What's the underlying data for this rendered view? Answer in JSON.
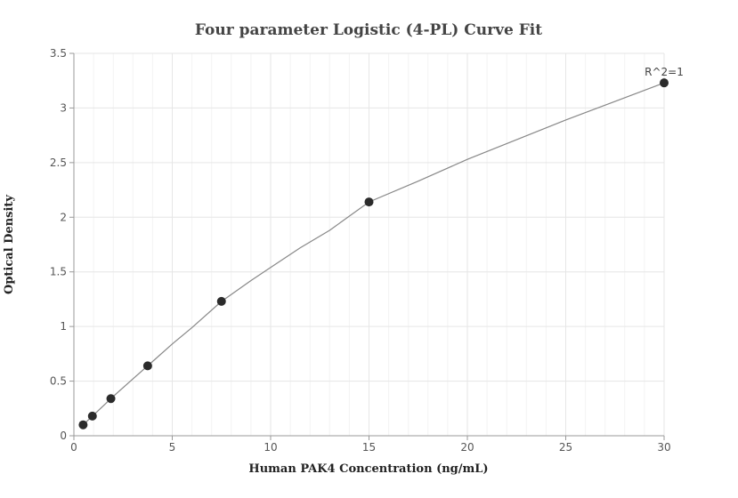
{
  "chart_data": {
    "type": "scatter",
    "title": "Four parameter Logistic (4-PL) Curve Fit",
    "xlabel": "Human PAK4 Concentration (ng/mL)",
    "ylabel": "Optical Density",
    "xlim": [
      0,
      30
    ],
    "ylim": [
      0,
      3.5
    ],
    "x_ticks": [
      0,
      5,
      10,
      15,
      20,
      25,
      30
    ],
    "y_ticks": [
      0,
      0.5,
      1,
      1.5,
      2,
      2.5,
      3,
      3.5
    ],
    "x_tick_labels": [
      "0",
      "5",
      "10",
      "15",
      "20",
      "25",
      "30"
    ],
    "y_tick_labels": [
      "0",
      "0.5",
      "1",
      "1.5",
      "2",
      "2.5",
      "3",
      "3.5"
    ],
    "grid": true,
    "points": [
      {
        "x": 0.47,
        "y": 0.1
      },
      {
        "x": 0.94,
        "y": 0.18
      },
      {
        "x": 1.88,
        "y": 0.34
      },
      {
        "x": 3.75,
        "y": 0.64
      },
      {
        "x": 7.5,
        "y": 1.23
      },
      {
        "x": 15,
        "y": 2.14
      },
      {
        "x": 30,
        "y": 3.23
      }
    ],
    "fit_curve": [
      {
        "x": 0.47,
        "y": 0.1
      },
      {
        "x": 1.0,
        "y": 0.19
      },
      {
        "x": 2.0,
        "y": 0.36
      },
      {
        "x": 3.0,
        "y": 0.52
      },
      {
        "x": 4.0,
        "y": 0.68
      },
      {
        "x": 5.0,
        "y": 0.84
      },
      {
        "x": 6.0,
        "y": 0.99
      },
      {
        "x": 7.5,
        "y": 1.23
      },
      {
        "x": 9.0,
        "y": 1.42
      },
      {
        "x": 10.0,
        "y": 1.54
      },
      {
        "x": 11.5,
        "y": 1.72
      },
      {
        "x": 13.0,
        "y": 1.88
      },
      {
        "x": 15.0,
        "y": 2.14
      },
      {
        "x": 17.5,
        "y": 2.33
      },
      {
        "x": 20.0,
        "y": 2.53
      },
      {
        "x": 22.5,
        "y": 2.71
      },
      {
        "x": 25.0,
        "y": 2.89
      },
      {
        "x": 27.5,
        "y": 3.06
      },
      {
        "x": 30.0,
        "y": 3.23
      }
    ],
    "annotation": {
      "text": "R^2=1",
      "x": 30,
      "y": 3.23
    },
    "point_color": "#2b2b2b",
    "curve_color": "#888888",
    "grid_color": "#e6e6e6",
    "minor_grid_color": "#f3f3f3"
  }
}
